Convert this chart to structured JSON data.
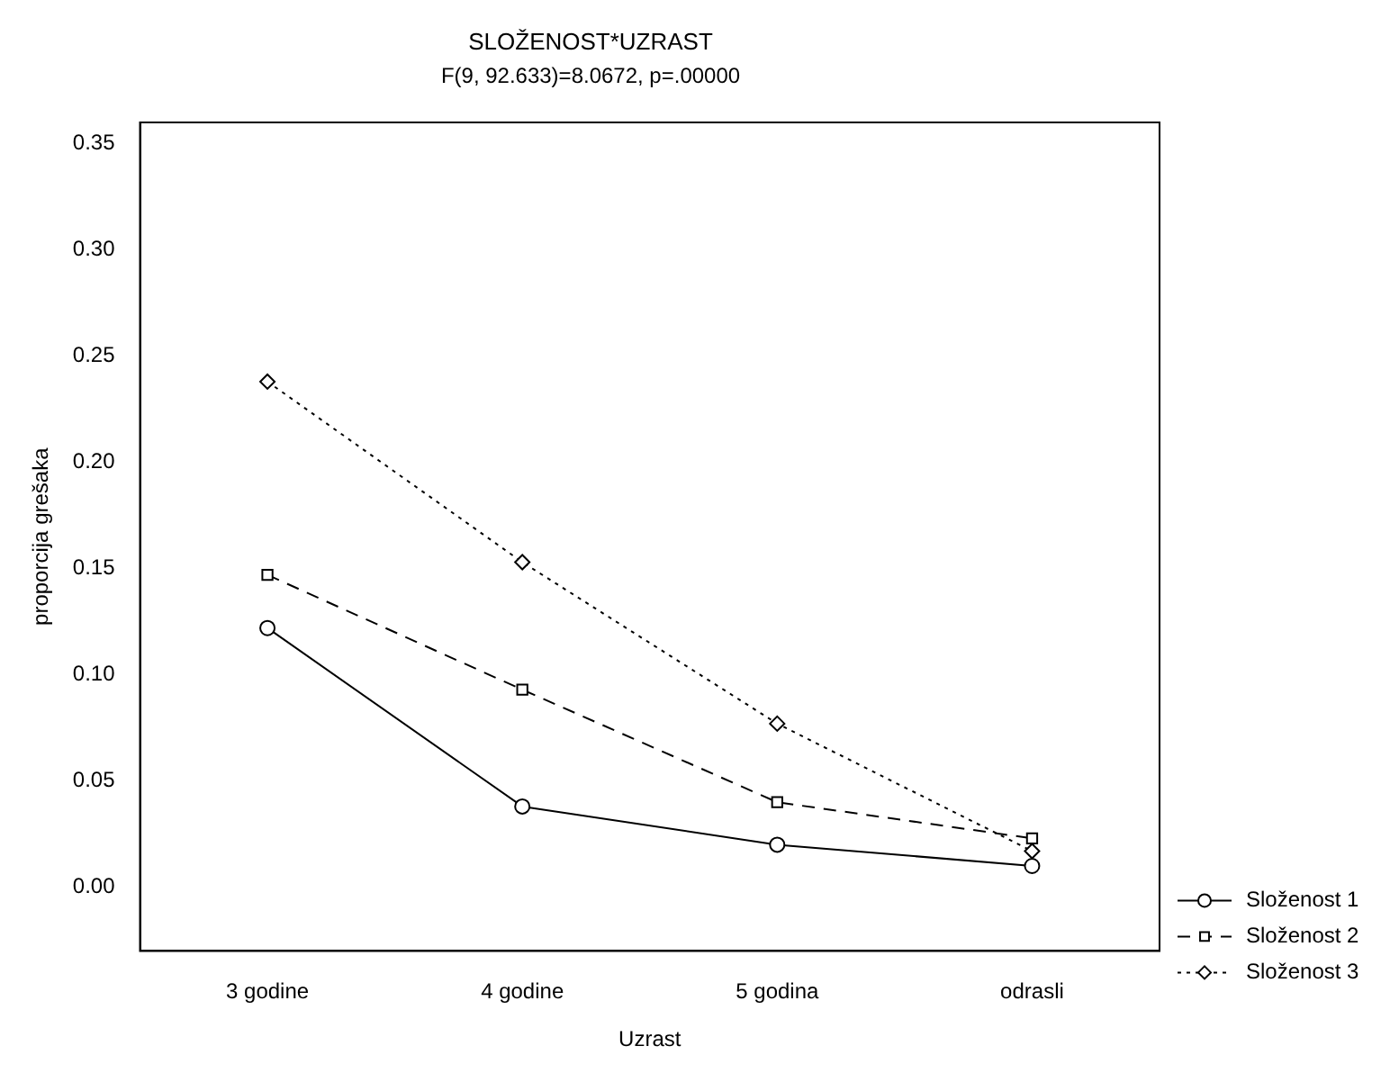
{
  "chart_data": {
    "type": "line",
    "title": "SLOŽENOST*UZRAST",
    "subtitle": "F(9, 92.633)=8.0672, p=.00000",
    "xlabel": "Uzrast",
    "ylabel": "proporcija grešaka",
    "categories": [
      "3 godine",
      "4 godine",
      "5 godina",
      "odrasli"
    ],
    "series": [
      {
        "name": "Složenost 1",
        "color": "#000000",
        "marker": "circle",
        "line_style": "solid",
        "values": [
          0.122,
          0.038,
          0.02,
          0.01
        ]
      },
      {
        "name": "Složenost 2",
        "color": "#000000",
        "marker": "square",
        "line_style": "dashed",
        "values": [
          0.147,
          0.093,
          0.04,
          0.023
        ]
      },
      {
        "name": "Složenost 3",
        "color": "#000000",
        "marker": "diamond",
        "line_style": "dotted",
        "values": [
          0.238,
          0.153,
          0.077,
          0.017
        ]
      }
    ],
    "ylim": [
      -0.03,
      0.36
    ],
    "yticks": [
      {
        "value": 0,
        "label": "0.00"
      },
      {
        "value": 0.05,
        "label": "0.05"
      },
      {
        "value": 0.1,
        "label": "0.10"
      },
      {
        "value": 0.15,
        "label": "0.15"
      },
      {
        "value": 0.2,
        "label": "0.20"
      },
      {
        "value": 0.25,
        "label": "0.25"
      },
      {
        "value": 0.3,
        "label": "0.30"
      },
      {
        "value": 0.35,
        "label": "0.35"
      }
    ],
    "grid": false,
    "legend": "bottom right"
  }
}
